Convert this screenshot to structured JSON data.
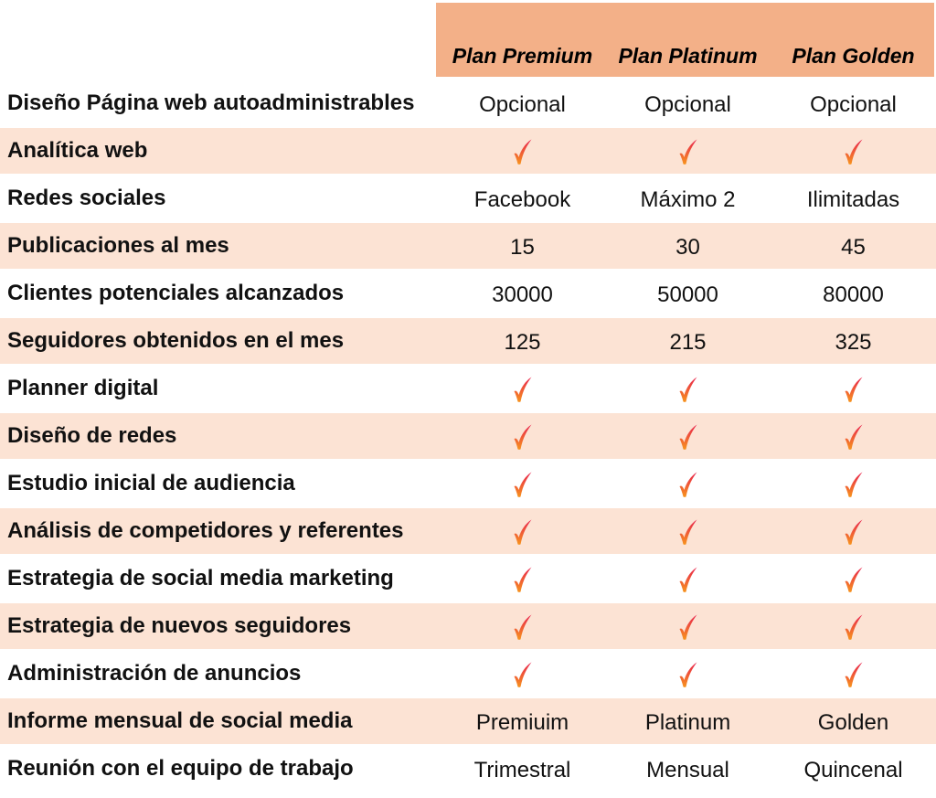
{
  "plans": [
    {
      "name": "Plan Premium"
    },
    {
      "name": "Plan Platinum"
    },
    {
      "name": "Plan Golden"
    }
  ],
  "colors": {
    "header_band": "#f3b088",
    "row_shade": "#fce3d4",
    "check_top": "#e8224f",
    "check_bottom": "#f7941d"
  },
  "rows": [
    {
      "label": "Diseño Página web autoadministrables",
      "values": [
        "Opcional",
        "Opcional",
        "Opcional"
      ],
      "shaded": false
    },
    {
      "label": "Analítica web",
      "values": [
        "check",
        "check",
        "check"
      ],
      "shaded": true
    },
    {
      "label": "Redes sociales",
      "values": [
        "Facebook",
        "Máximo 2",
        "Ilimitadas"
      ],
      "shaded": false
    },
    {
      "label": "Publicaciones al mes",
      "values": [
        "15",
        "30",
        "45"
      ],
      "shaded": true
    },
    {
      "label": "Clientes potenciales alcanzados",
      "values": [
        "30000",
        "50000",
        "80000"
      ],
      "shaded": false
    },
    {
      "label": "Seguidores obtenidos en el mes",
      "values": [
        "125",
        "215",
        "325"
      ],
      "shaded": true
    },
    {
      "label": "Planner digital",
      "values": [
        "check",
        "check",
        "check"
      ],
      "shaded": false
    },
    {
      "label": "Diseño de redes",
      "values": [
        "check",
        "check",
        "check"
      ],
      "shaded": true
    },
    {
      "label": "Estudio inicial de audiencia",
      "values": [
        "check",
        "check",
        "check"
      ],
      "shaded": false
    },
    {
      "label": "Análisis de competidores y referentes",
      "values": [
        "check",
        "check",
        "check"
      ],
      "shaded": true
    },
    {
      "label": "Estrategia de social media marketing",
      "values": [
        "check",
        "check",
        "check"
      ],
      "shaded": false
    },
    {
      "label": "Estrategia de nuevos seguidores",
      "values": [
        "check",
        "check",
        "check"
      ],
      "shaded": true
    },
    {
      "label": "Administración de anuncios",
      "values": [
        "check",
        "check",
        "check"
      ],
      "shaded": false
    },
    {
      "label": "Informe mensual de social media",
      "values": [
        "Premiuim",
        "Platinum",
        "Golden"
      ],
      "shaded": true
    },
    {
      "label": "Reunión con el equipo de trabajo",
      "values": [
        "Trimestral",
        "Mensual",
        "Quincenal"
      ],
      "shaded": false
    }
  ]
}
